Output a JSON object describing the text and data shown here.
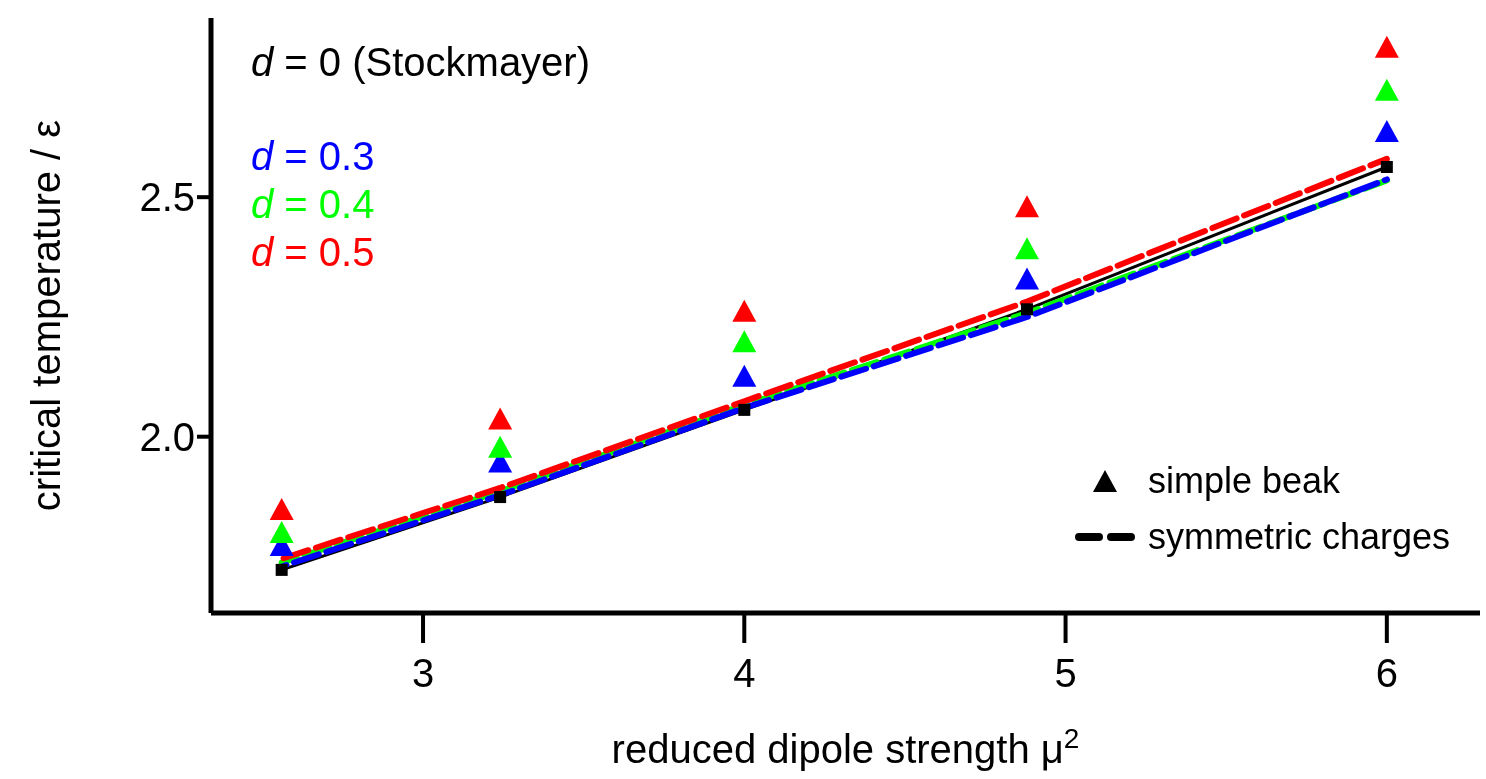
{
  "chart_data": {
    "type": "line",
    "xlabel": "reduced dipole strength μ$^{2}$",
    "ylabel": "critical temperature / ε",
    "xlim": [
      2.34,
      6.29
    ],
    "ylim": [
      1.632,
      2.874
    ],
    "xticks": [
      3,
      4,
      5,
      6
    ],
    "yticks": [
      {
        "value": 2,
        "label": "2.0"
      },
      {
        "value": 2.5,
        "label": "2.5"
      }
    ],
    "legend": "top left",
    "x": [
      2.56,
      3.24,
      4,
      4.88,
      6
    ],
    "series": [
      {
        "name": "d = 0 (Stockmayer)",
        "type": "line",
        "color": "#000000",
        "marker": "square",
        "line_style": "solid",
        "values": [
          1.722,
          1.874,
          2.056,
          2.266,
          2.563
        ]
      },
      {
        "name": "d = 0.3",
        "type": "scatter",
        "color": "#0000ff",
        "marker": "triangle",
        "values": [
          1.77,
          1.944,
          2.123,
          2.326,
          2.634
        ]
      },
      {
        "name": "d = 0.4",
        "type": "scatter",
        "color": "#00ff00",
        "marker": "triangle",
        "values": [
          1.797,
          1.975,
          2.195,
          2.389,
          2.72
        ]
      },
      {
        "name": "d = 0.5",
        "type": "scatter",
        "color": "#ff0000",
        "marker": "triangle",
        "values": [
          1.845,
          2.034,
          2.259,
          2.477,
          2.81
        ]
      },
      {
        "color": "#00ff00",
        "marker": "none",
        "line_style": "dashed",
        "values": [
          1.737,
          1.886,
          2.066,
          2.258,
          2.535
        ]
      },
      {
        "color": "#0000ff",
        "marker": "none",
        "line_style": "dashed",
        "values": [
          1.729,
          1.878,
          2.06,
          2.25,
          2.537
        ]
      },
      {
        "color": "#ff0000",
        "marker": "none",
        "line_style": "dashed",
        "values": [
          1.745,
          1.893,
          2.074,
          2.282,
          2.58
        ]
      }
    ],
    "annotations": [
      "simple beak",
      "symmetric charges"
    ]
  }
}
